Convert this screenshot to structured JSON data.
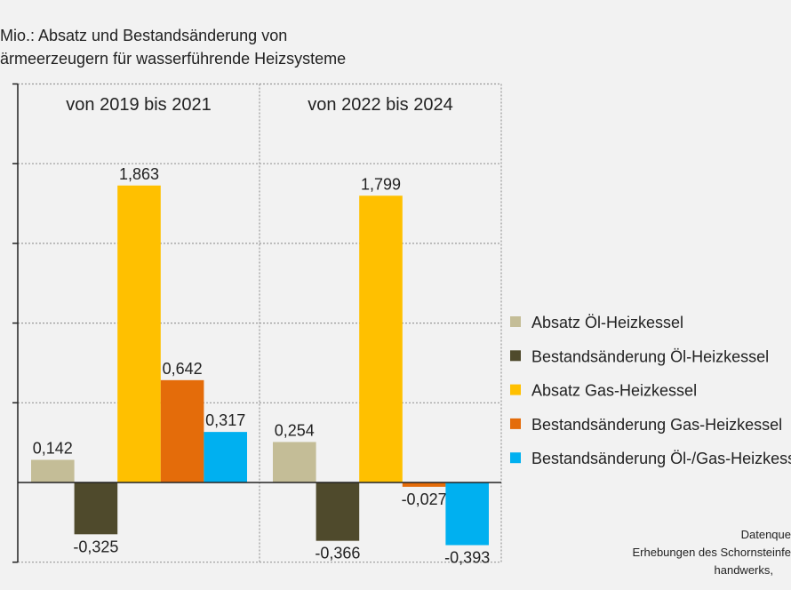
{
  "chart_data": {
    "type": "bar",
    "title_lines": [
      "Mio.: Absatz und Bestandsänderung  von",
      "ärmeerzeugern  für wasserführende  Heizsysteme"
    ],
    "categories": [
      "von 2019 bis 2021",
      "von 2022 bis 2024"
    ],
    "series": [
      {
        "name": "Absatz Öl-Heizkessel",
        "color": "#c4bd97",
        "values": [
          0.142,
          0.254
        ],
        "labels": [
          "0,142",
          "0,254"
        ]
      },
      {
        "name": "Bestandsänderung Öl-Heizkessel",
        "color": "#4f4a2c",
        "values": [
          -0.325,
          -0.366
        ],
        "labels": [
          "-0,325",
          "-0,366"
        ]
      },
      {
        "name": "Absatz Gas-Heizkessel",
        "color": "#ffc000",
        "values": [
          1.863,
          1.799
        ],
        "labels": [
          "1,863",
          "1,799"
        ]
      },
      {
        "name": "Bestandsänderung Gas-Heizkessel",
        "color": "#e46c0a",
        "values": [
          0.642,
          -0.027
        ],
        "labels": [
          "0,642",
          "-0,027"
        ]
      },
      {
        "name": "Bestandsänderung Öl-/Gas-Heizkessel",
        "color": "#00b0f0",
        "values": [
          0.317,
          -0.393
        ],
        "labels": [
          "0,317",
          "-0,393"
        ]
      }
    ],
    "ylim": [
      -0.5,
      2.5
    ],
    "ytick_step": 0.5,
    "grid": true,
    "legend_placement": "right",
    "source_lines": [
      "Datenque",
      "Erhebungen des Schornsteinfe",
      "handwerks,"
    ]
  }
}
